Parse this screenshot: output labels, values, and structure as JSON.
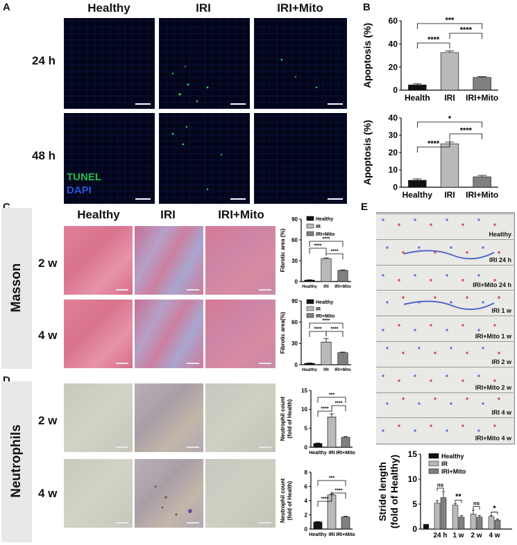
{
  "panel_letters": {
    "a": "A",
    "b": "B",
    "c": "C",
    "d": "D",
    "e": "E"
  },
  "panelA": {
    "columns": [
      "Healthy",
      "IRI",
      "IRI+Mito"
    ],
    "rows": [
      "24 h",
      "48 h"
    ],
    "legend_tunel": "TUNEL",
    "legend_dapi": "DAPI",
    "tunel_color": "#1fbf4a",
    "dapi_color": "#2a55d8"
  },
  "panelC": {
    "columns": [
      "Healthy",
      "IRI",
      "IRI+Mito"
    ],
    "rows": [
      "2 w",
      "4 w"
    ],
    "side": "Masson"
  },
  "panelD": {
    "rows": [
      "2 w",
      "4 w"
    ],
    "side": "Neutrophils"
  },
  "panelE": {
    "strips": [
      "Healthy",
      "IRI 24 h",
      "IRI+Mito 24 h",
      "IRI 1 w",
      "IRI+Mito 1 w",
      "IRI 2 w",
      "IRI+Mito 2 w",
      "IRI 4 w",
      "IRI+Mito 4 w"
    ]
  },
  "chart_data": [
    {
      "id": "B1",
      "type": "bar",
      "ylabel": "Apoptosis (%)",
      "categories": [
        "Health",
        "IRI",
        "IRI+Mito"
      ],
      "values": [
        4.5,
        32.5,
        11
      ],
      "errors": [
        1,
        1.5,
        0.7
      ],
      "ylim": [
        0,
        60
      ],
      "yticks": [
        0,
        20,
        40,
        60
      ],
      "sig": [
        "****",
        "****",
        "***"
      ]
    },
    {
      "id": "B2",
      "type": "bar",
      "ylabel": "Apoptosis (%)",
      "categories": [
        "Healthy",
        "IRI",
        "IRI+Mito"
      ],
      "values": [
        4,
        25,
        6
      ],
      "errors": [
        0.8,
        1,
        0.8
      ],
      "ylim": [
        0,
        40
      ],
      "yticks": [
        0,
        10,
        20,
        30,
        40
      ],
      "sig": [
        "****",
        "****",
        "*"
      ]
    },
    {
      "id": "C1",
      "type": "bar",
      "ylabel": "Fibrotic area (%)",
      "categories": [
        "Healthy",
        "IRI",
        "IRI+Mito"
      ],
      "values": [
        2,
        33,
        16
      ],
      "errors": [
        0.5,
        1,
        0.8
      ],
      "ylim": [
        0,
        90
      ],
      "yticks": [
        0,
        30,
        60,
        90
      ],
      "legend": [
        "Healthy",
        "IR",
        "IRI+Mito"
      ],
      "sig": [
        "****",
        "****",
        "****"
      ]
    },
    {
      "id": "C2",
      "type": "bar",
      "ylabel": "Fibrotic area(%)",
      "categories": [
        "Healthy",
        "IRI",
        "IRI+Mito"
      ],
      "values": [
        2,
        32,
        17
      ],
      "errors": [
        0.4,
        5,
        0.8
      ],
      "ylim": [
        0,
        90
      ],
      "yticks": [
        0,
        30,
        60,
        90
      ],
      "legend": [
        "Healthy",
        "IR",
        "IRI+Mito"
      ],
      "sig": [
        "****",
        "****",
        "****"
      ]
    },
    {
      "id": "D1",
      "type": "bar",
      "ylabel": "Neutrophil count (fold of Health)",
      "categories": [
        "Healthy",
        "IRI",
        "IRI+Mito"
      ],
      "values": [
        1,
        8,
        2.6
      ],
      "errors": [
        0.1,
        0.8,
        0.2
      ],
      "ylim": [
        0,
        15
      ],
      "yticks": [
        0,
        5,
        10,
        15
      ],
      "sig": [
        "****",
        "****",
        "***"
      ]
    },
    {
      "id": "D2",
      "type": "bar",
      "ylabel": "Neutrophil count (fold of Health)",
      "categories": [
        "Healthy",
        "IRI",
        "IRI+Mito"
      ],
      "values": [
        1,
        4.8,
        1.7
      ],
      "errors": [
        0.05,
        0.15,
        0.1
      ],
      "ylim": [
        0,
        8
      ],
      "yticks": [
        0,
        2,
        4,
        6,
        8
      ],
      "sig": [
        "****",
        "****",
        "***"
      ]
    },
    {
      "id": "E",
      "type": "bar",
      "ylabel": "Stride length (fold of Healthy)",
      "categories": [
        "24 h",
        "1 w",
        "2 w",
        "4 w"
      ],
      "legend": [
        "Healthy",
        "IR",
        "IRI+Mito"
      ],
      "healthy": 1,
      "series": [
        {
          "name": "IR",
          "values": [
            5.2,
            4.8,
            3.0,
            2.5
          ]
        },
        {
          "name": "IRI+Mito",
          "values": [
            6.3,
            2.4,
            2.4,
            1.8
          ]
        }
      ],
      "errors": [
        [
          0.5,
          0.3,
          0.8,
          0.2
        ],
        [
          1.2,
          0.3,
          0.3,
          0.2
        ]
      ],
      "ylim": [
        0,
        15
      ],
      "yticks": [
        0,
        5,
        10,
        15
      ],
      "sig": [
        "ns",
        "**",
        "ns",
        "*"
      ]
    }
  ]
}
